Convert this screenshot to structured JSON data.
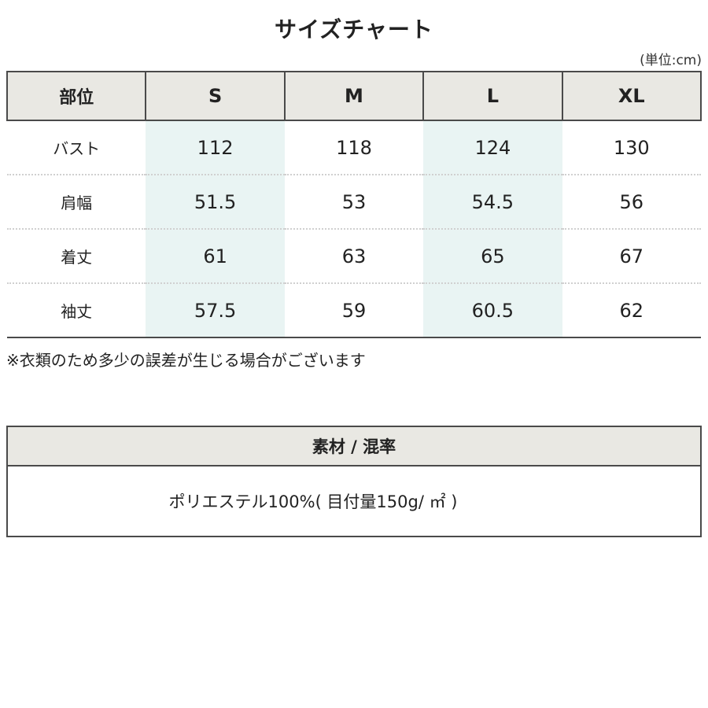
{
  "page": {
    "title": "サイズチャート",
    "unit_label": "(単位:cm)",
    "note": "※衣類のため多少の誤差が生じる場合がございます"
  },
  "size_table": {
    "columns": [
      "部位",
      "S",
      "M",
      "L",
      "XL"
    ],
    "rows": [
      {
        "label": "バスト",
        "values": [
          "112",
          "118",
          "124",
          "130"
        ]
      },
      {
        "label": "肩幅",
        "values": [
          "51.5",
          "53",
          "54.5",
          "56"
        ]
      },
      {
        "label": "着丈",
        "values": [
          "61",
          "63",
          "65",
          "67"
        ]
      },
      {
        "label": "袖丈",
        "values": [
          "57.5",
          "59",
          "60.5",
          "62"
        ]
      }
    ],
    "highlighted_columns": [
      "S",
      "L"
    ]
  },
  "material_table": {
    "header": "素材 / 混率",
    "content": "ポリエステル100%( 目付量150g/ ㎡ )"
  },
  "colors": {
    "header_bg": "#e9e8e3",
    "highlight_bg": "#e9f4f3",
    "border_dark": "#4a4a4a",
    "dotted_divider": "#d0d0d0",
    "text": "#222222"
  }
}
